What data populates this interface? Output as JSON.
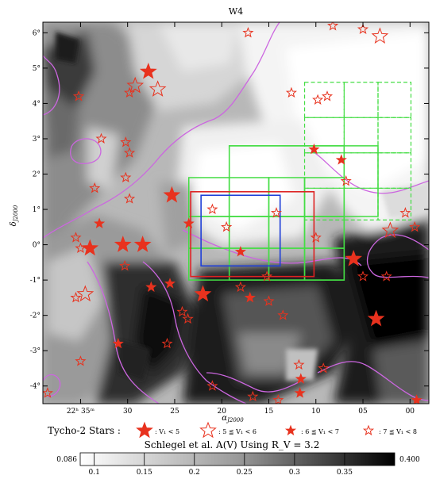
{
  "chart_data": {
    "type": "image-map",
    "title": "W4",
    "xlabel": "α",
    "xlabel_sub": "J2000",
    "ylabel": "δ",
    "ylabel_sub": "J2000",
    "x_ticks": [
      {
        "label": "22ʰ 35ᵐ",
        "ra_sec": 35
      },
      {
        "label": "30",
        "ra_sec": 30
      },
      {
        "label": "25",
        "ra_sec": 25
      },
      {
        "label": "20",
        "ra_sec": 20
      },
      {
        "label": "15",
        "ra_sec": 15
      },
      {
        "label": "10",
        "ra_sec": 10
      },
      {
        "label": "05",
        "ra_sec": 5
      },
      {
        "label": "00",
        "ra_sec": 0
      }
    ],
    "y_ticks": [
      {
        "label": "6°",
        "value": 6
      },
      {
        "label": "5°",
        "value": 5
      },
      {
        "label": "4°",
        "value": 4
      },
      {
        "label": "3°",
        "value": 3
      },
      {
        "label": "2°",
        "value": 2
      },
      {
        "label": "1°",
        "value": 1
      },
      {
        "label": "0°",
        "value": 0
      },
      {
        "label": "-1°",
        "value": -1
      },
      {
        "label": "-2°",
        "value": -2
      },
      {
        "label": "-3°",
        "value": -3
      },
      {
        "label": "-4°",
        "value": -4
      }
    ],
    "xlim_ra_sec": [
      39,
      -2
    ],
    "ylim_deg": [
      -4.5,
      6.3
    ],
    "legend_title": "Tycho-2 Stars :",
    "legend": [
      {
        "label": "V₁ < 5",
        "style": "filled-large"
      },
      {
        "label": "5 ≦ V₁ < 6",
        "style": "open-large"
      },
      {
        "label": "6 ≦ V₁ < 7",
        "style": "filled-small"
      },
      {
        "label": "7 ≦ V₁ < 8",
        "style": "open-small"
      }
    ],
    "colorbar": {
      "title": "Schlegel et al. A(V) Using R_V = 3.2",
      "min_label": "0.086",
      "max_label": "0.400",
      "min": 0.086,
      "max": 0.4,
      "ticks": [
        {
          "label": "0.1",
          "value": 0.1
        },
        {
          "label": "0.15",
          "value": 0.15
        },
        {
          "label": "0.2",
          "value": 0.2
        },
        {
          "label": "0.25",
          "value": 0.25
        },
        {
          "label": "0.3",
          "value": 0.3
        },
        {
          "label": "0.35",
          "value": 0.35
        }
      ]
    },
    "colors": {
      "contour": "#cc66e0",
      "star": "#e8321e",
      "field_green": "#44dd44",
      "box_red": "#dd2222",
      "box_blue": "#1f3fd8"
    },
    "boxes": [
      {
        "name": "red",
        "ra": [
          23.3,
          10.2
        ],
        "dec": [
          1.5,
          -0.9
        ]
      },
      {
        "name": "blue",
        "ra": [
          22.2,
          13.8
        ],
        "dec": [
          1.4,
          -0.6
        ]
      }
    ],
    "green_fields_solid": {
      "ra_edges": [
        23.5,
        19.2,
        15.0,
        11.2,
        7.0
      ],
      "dec_edges": [
        1.9,
        0.8,
        -0.1,
        -1.0
      ],
      "extra": [
        {
          "ra": [
            19.2,
            3.4
          ],
          "dec": [
            2.8,
            0.8
          ]
        },
        {
          "ra": [
            19.2,
            7.0
          ],
          "dec": [
            2.8,
            -1.0
          ]
        }
      ]
    },
    "green_fields_dashed": {
      "ra_edges": [
        11.2,
        7.0,
        3.4,
        -0.1
      ],
      "dec_edges": [
        4.6,
        3.6,
        2.6,
        1.6,
        0.7
      ]
    },
    "stars": [
      {
        "ra": 27.8,
        "dec": 4.9,
        "cls": 1
      },
      {
        "ra": 29.2,
        "dec": 4.5,
        "cls": 2
      },
      {
        "ra": 26.8,
        "dec": 4.4,
        "cls": 2
      },
      {
        "ra": 35.2,
        "dec": 4.2,
        "cls": 4
      },
      {
        "ra": 29.8,
        "dec": 4.3,
        "cls": 4
      },
      {
        "ra": 17.2,
        "dec": 6.0,
        "cls": 4
      },
      {
        "ra": 12.6,
        "dec": 4.3,
        "cls": 4
      },
      {
        "ra": 8.2,
        "dec": 6.2,
        "cls": 4
      },
      {
        "ra": 5.0,
        "dec": 6.1,
        "cls": 4
      },
      {
        "ra": 3.2,
        "dec": 5.9,
        "cls": 2
      },
      {
        "ra": 9.8,
        "dec": 4.1,
        "cls": 4
      },
      {
        "ra": 8.8,
        "dec": 4.2,
        "cls": 4
      },
      {
        "ra": 30.2,
        "dec": 2.9,
        "cls": 4
      },
      {
        "ra": 32.8,
        "dec": 3.0,
        "cls": 4
      },
      {
        "ra": 29.8,
        "dec": 2.6,
        "cls": 4
      },
      {
        "ra": 30.2,
        "dec": 1.9,
        "cls": 4
      },
      {
        "ra": 33.5,
        "dec": 1.6,
        "cls": 4
      },
      {
        "ra": 29.8,
        "dec": 1.3,
        "cls": 4
      },
      {
        "ra": 10.2,
        "dec": 2.7,
        "cls": 3
      },
      {
        "ra": 7.3,
        "dec": 2.4,
        "cls": 3
      },
      {
        "ra": 6.8,
        "dec": 1.8,
        "cls": 4
      },
      {
        "ra": 25.3,
        "dec": 1.4,
        "cls": 1
      },
      {
        "ra": 21.0,
        "dec": 1.0,
        "cls": 4
      },
      {
        "ra": 14.2,
        "dec": 0.9,
        "cls": 4
      },
      {
        "ra": 0.5,
        "dec": 0.9,
        "cls": 4
      },
      {
        "ra": 2.1,
        "dec": 0.4,
        "cls": 2
      },
      {
        "ra": 33.0,
        "dec": 0.6,
        "cls": 3
      },
      {
        "ra": 23.5,
        "dec": 0.6,
        "cls": 3
      },
      {
        "ra": 19.5,
        "dec": 0.5,
        "cls": 4
      },
      {
        "ra": 10.0,
        "dec": 0.2,
        "cls": 4
      },
      {
        "ra": -0.5,
        "dec": 0.5,
        "cls": 4
      },
      {
        "ra": 35.5,
        "dec": 0.2,
        "cls": 4
      },
      {
        "ra": 34.0,
        "dec": -0.1,
        "cls": 1
      },
      {
        "ra": 30.5,
        "dec": 0.0,
        "cls": 1
      },
      {
        "ra": 28.4,
        "dec": 0.0,
        "cls": 1
      },
      {
        "ra": 35.0,
        "dec": -0.1,
        "cls": 4
      },
      {
        "ra": 18.0,
        "dec": -0.2,
        "cls": 3
      },
      {
        "ra": 6.0,
        "dec": -0.4,
        "cls": 1
      },
      {
        "ra": 30.3,
        "dec": -0.6,
        "cls": 4
      },
      {
        "ra": 15.2,
        "dec": -0.9,
        "cls": 4
      },
      {
        "ra": 5.0,
        "dec": -0.9,
        "cls": 4
      },
      {
        "ra": 2.5,
        "dec": -0.9,
        "cls": 4
      },
      {
        "ra": 25.5,
        "dec": -1.1,
        "cls": 3
      },
      {
        "ra": 18.0,
        "dec": -1.2,
        "cls": 4
      },
      {
        "ra": 27.5,
        "dec": -1.2,
        "cls": 3
      },
      {
        "ra": 22.0,
        "dec": -1.4,
        "cls": 1
      },
      {
        "ra": 34.5,
        "dec": -1.4,
        "cls": 2
      },
      {
        "ra": 35.5,
        "dec": -1.5,
        "cls": 4
      },
      {
        "ra": 17.0,
        "dec": -1.5,
        "cls": 3
      },
      {
        "ra": 15.0,
        "dec": -1.6,
        "cls": 4
      },
      {
        "ra": 24.2,
        "dec": -1.9,
        "cls": 4
      },
      {
        "ra": 23.6,
        "dec": -2.1,
        "cls": 4
      },
      {
        "ra": 13.5,
        "dec": -2.0,
        "cls": 4
      },
      {
        "ra": 3.6,
        "dec": -2.1,
        "cls": 1
      },
      {
        "ra": 31.0,
        "dec": -2.8,
        "cls": 3
      },
      {
        "ra": 25.8,
        "dec": -2.8,
        "cls": 4
      },
      {
        "ra": 35.0,
        "dec": -3.3,
        "cls": 4
      },
      {
        "ra": 11.8,
        "dec": -3.4,
        "cls": 4
      },
      {
        "ra": 9.2,
        "dec": -3.5,
        "cls": 4
      },
      {
        "ra": 11.6,
        "dec": -3.8,
        "cls": 3
      },
      {
        "ra": 21.0,
        "dec": -4.0,
        "cls": 4
      },
      {
        "ra": 11.7,
        "dec": -4.2,
        "cls": 3
      },
      {
        "ra": 16.7,
        "dec": -4.3,
        "cls": 4
      },
      {
        "ra": 38.5,
        "dec": -4.2,
        "cls": 4
      },
      {
        "ra": 14.0,
        "dec": -4.4,
        "cls": 4
      },
      {
        "ra": -0.7,
        "dec": -4.4,
        "cls": 3
      }
    ]
  }
}
